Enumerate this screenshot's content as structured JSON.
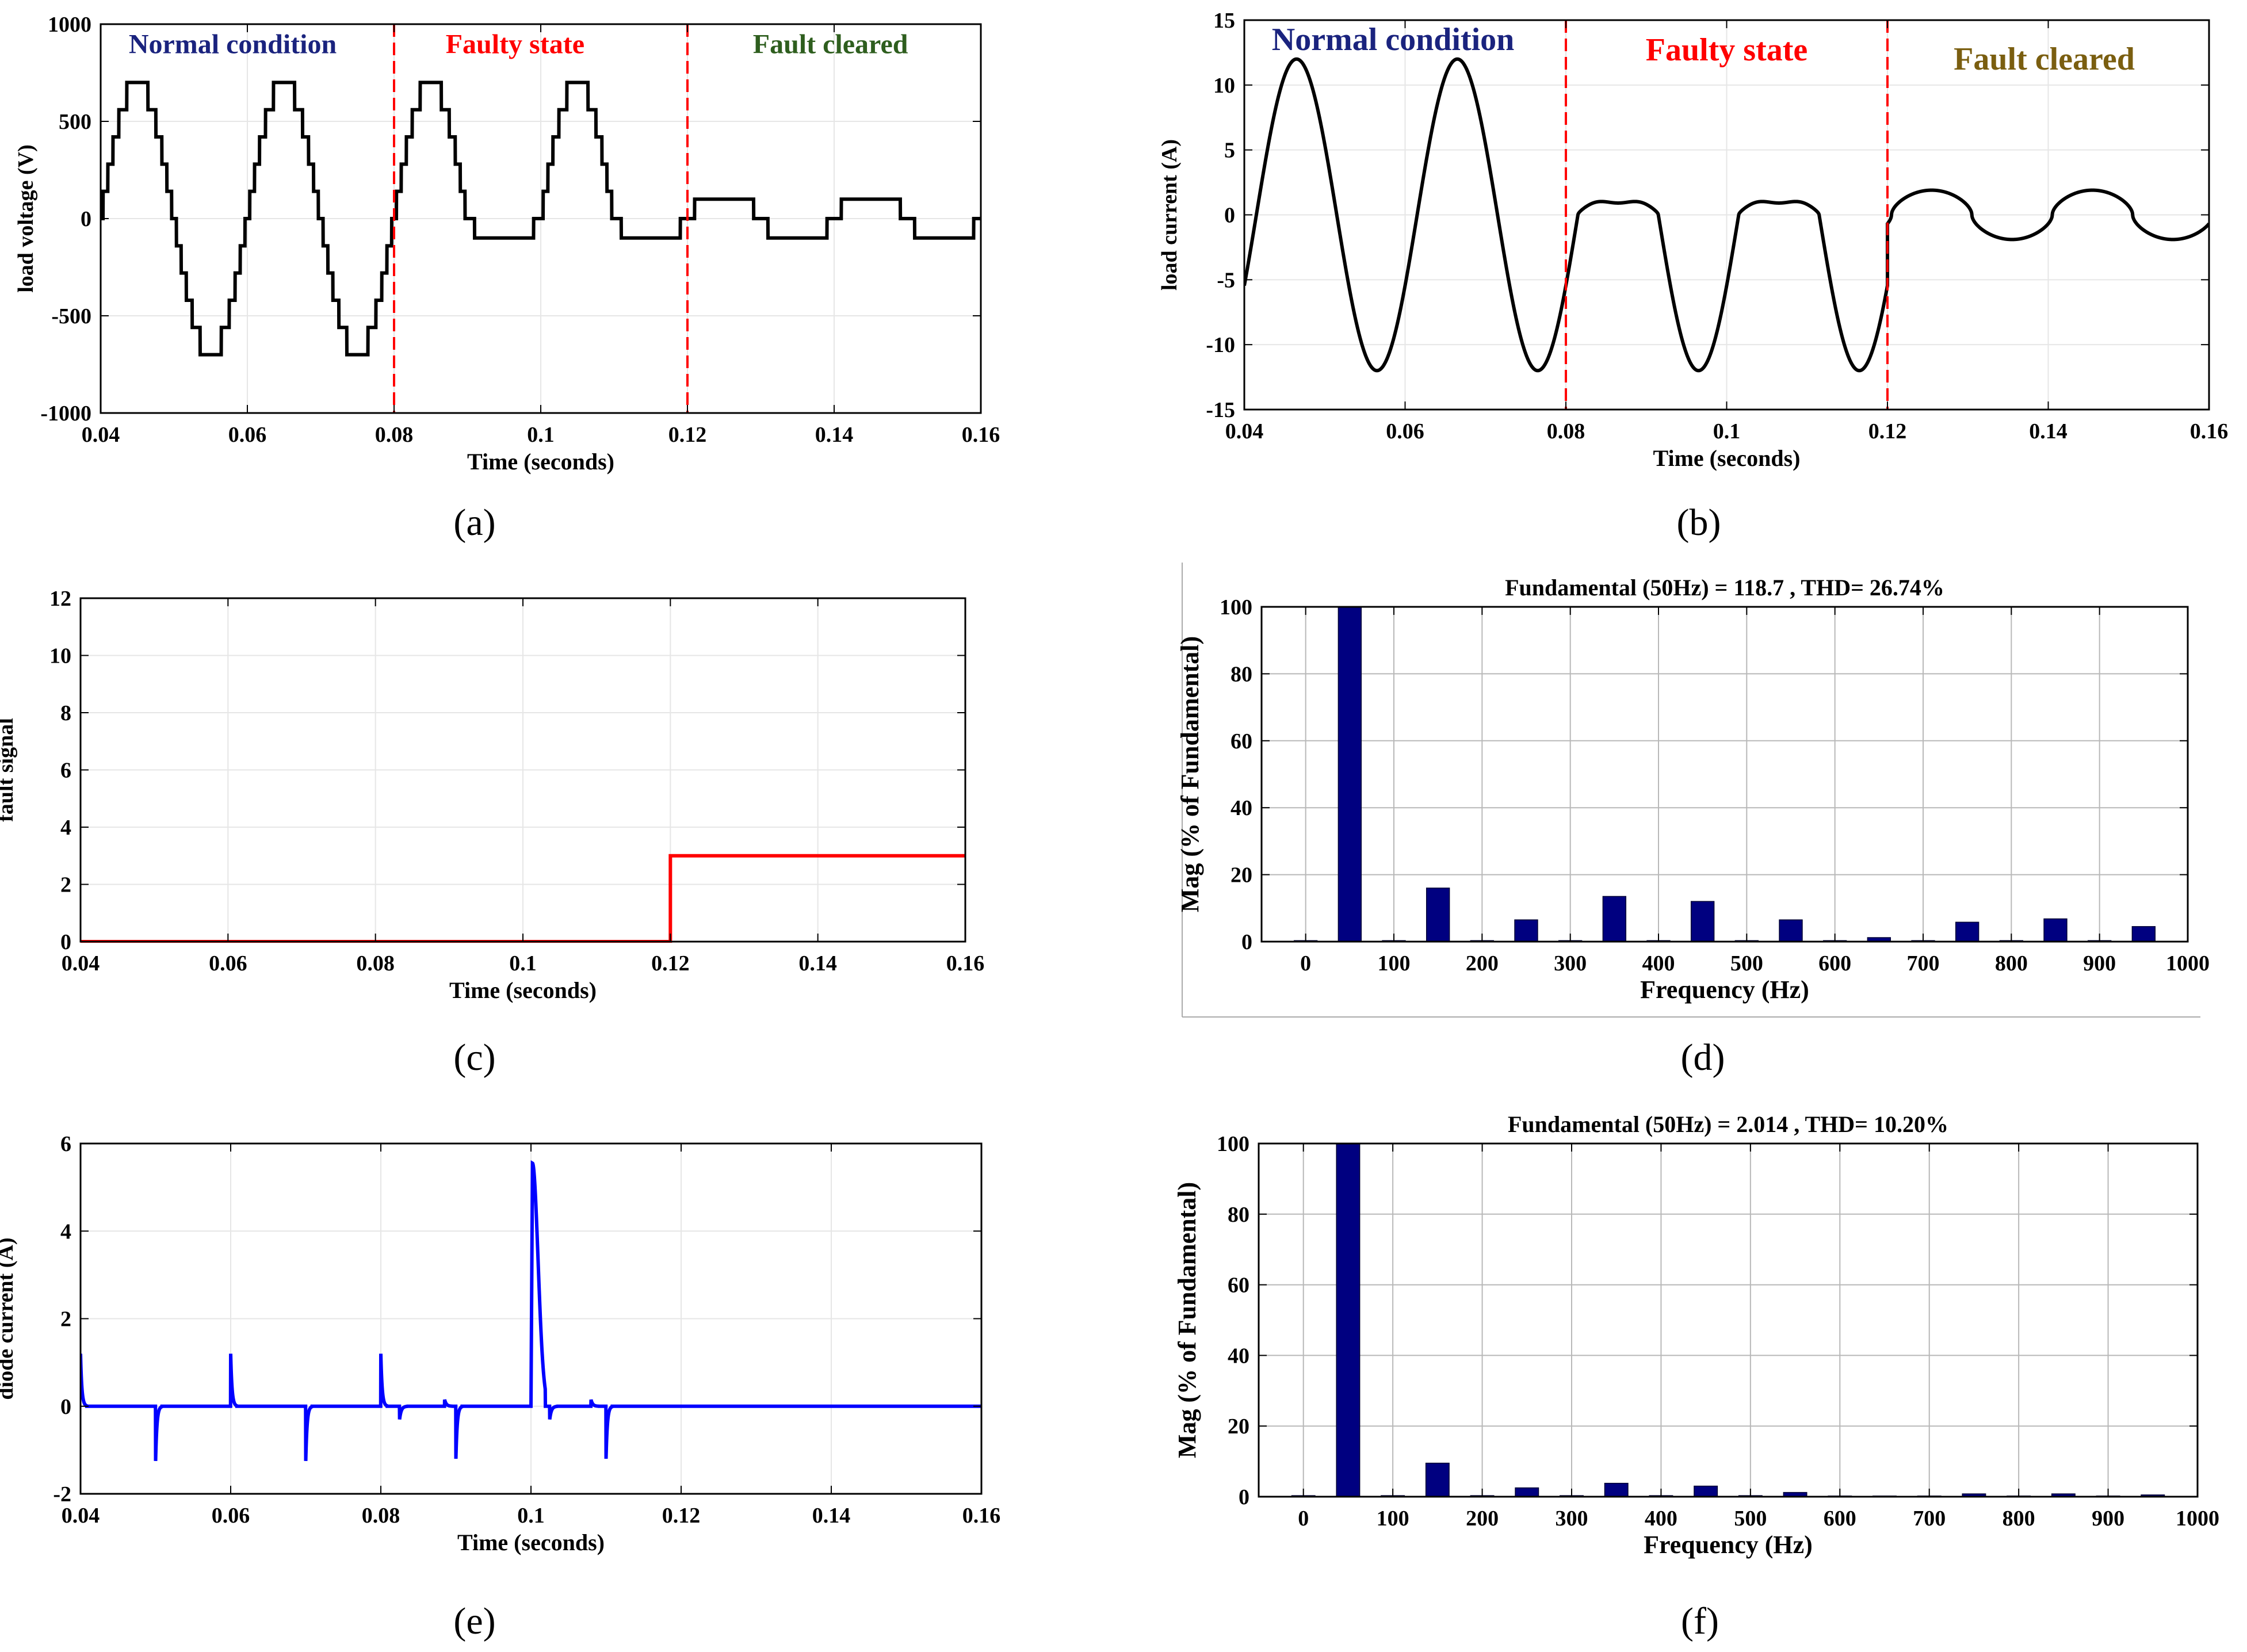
{
  "chart_data": [
    {
      "id": "a",
      "type": "line",
      "caption": "(a)",
      "xlabel": "Time (seconds)",
      "ylabel": "load voltage (V)",
      "xlim": [
        0.04,
        0.16
      ],
      "ylim": [
        -1000,
        1000
      ],
      "xticks": [
        0.04,
        0.06,
        0.08,
        0.1,
        0.12,
        0.14,
        0.16
      ],
      "xtick_labels": [
        "0.04",
        "0.06",
        "0.08",
        "0.1",
        "0.12",
        "0.14",
        "0.16"
      ],
      "yticks": [
        -1000,
        -500,
        0,
        500,
        1000
      ],
      "ytick_labels": [
        "-1000",
        "-500",
        "0",
        "500",
        "1000"
      ],
      "grid": true,
      "colors": {
        "line": "#000000",
        "fault_line": "#ff0000"
      },
      "vlines": [
        0.08,
        0.12
      ],
      "annotations": [
        {
          "text": "Normal condition",
          "x": 0.058,
          "y": 850,
          "color": "#1a237e"
        },
        {
          "text": "Faulty state",
          "x": 0.0965,
          "y": 850,
          "color": "#ff0000"
        },
        {
          "text": "Fault cleared",
          "x": 0.1395,
          "y": 850,
          "color": "#2e5e1e"
        }
      ],
      "series": [
        {
          "signal": "staircase_voltage",
          "segments": [
            {
              "x0": 0.04,
              "x1": 0.08,
              "kind": "full",
              "amp": 700
            },
            {
              "x0": 0.08,
              "x1": 0.12,
              "kind": "half",
              "amp": 700,
              "neg": -100
            },
            {
              "x0": 0.12,
              "x1": 0.16,
              "kind": "flat",
              "pos": 100,
              "neg": -100
            }
          ]
        }
      ]
    },
    {
      "id": "b",
      "type": "line",
      "caption": "(b)",
      "xlabel": "Time (seconds)",
      "ylabel": "load current (A)",
      "xlim": [
        0.04,
        0.16
      ],
      "ylim": [
        -15,
        15
      ],
      "xticks": [
        0.04,
        0.06,
        0.08,
        0.1,
        0.12,
        0.14,
        0.16
      ],
      "xtick_labels": [
        "0.04",
        "0.06",
        "0.08",
        "0.1",
        "0.12",
        "0.14",
        "0.16"
      ],
      "yticks": [
        -15,
        -10,
        -5,
        0,
        5,
        10,
        15
      ],
      "ytick_labels": [
        "-15",
        "-10",
        "-5",
        "0",
        "5",
        "10",
        "15"
      ],
      "grid": true,
      "colors": {
        "line": "#000000",
        "fault_line": "#ff0000"
      },
      "vlines": [
        0.08,
        0.12
      ],
      "annotations": [
        {
          "text": "Normal condition",
          "x": 0.0585,
          "y": 12.7,
          "color": "#1a237e"
        },
        {
          "text": "Faulty state",
          "x": 0.1,
          "y": 11.9,
          "color": "#ff0000"
        },
        {
          "text": "Fault cleared",
          "x": 0.1395,
          "y": 11.2,
          "color": "#7a5e10"
        }
      ],
      "series": [
        {
          "signal": "load_current",
          "segments": [
            {
              "x0": 0.04,
              "x1": 0.08,
              "kind": "sine",
              "amp": 12,
              "phase_time": 0.0415
            },
            {
              "x0": 0.08,
              "x1": 0.12,
              "kind": "half_neg",
              "amp": 12,
              "pos_amp": 1.3
            },
            {
              "x0": 0.12,
              "x1": 0.16,
              "kind": "small",
              "amp": 1.9
            }
          ]
        }
      ]
    },
    {
      "id": "c",
      "type": "line",
      "caption": "(c)",
      "xlabel": "Time (seconds)",
      "ylabel": "fault signal",
      "xlim": [
        0.04,
        0.16
      ],
      "ylim": [
        0,
        12
      ],
      "xticks": [
        0.04,
        0.06,
        0.08,
        0.1,
        0.12,
        0.14,
        0.16
      ],
      "xtick_labels": [
        "0.04",
        "0.06",
        "0.08",
        "0.1",
        "0.12",
        "0.14",
        "0.16"
      ],
      "yticks": [
        0,
        2,
        4,
        6,
        8,
        10,
        12
      ],
      "ytick_labels": [
        "0",
        "2",
        "4",
        "6",
        "8",
        "10",
        "12"
      ],
      "grid": true,
      "colors": {
        "line": "#ff0000"
      },
      "series": [
        {
          "signal": "fault_signal",
          "x": [
            0.04,
            0.12,
            0.12,
            0.16
          ],
          "y": [
            0,
            0,
            3,
            3
          ]
        }
      ]
    },
    {
      "id": "d",
      "type": "bar",
      "caption": "(d)",
      "title": "Fundamental (50Hz) = 118.7 , THD= 26.74%",
      "xlabel": "Frequency (Hz)",
      "ylabel": "Mag (% of Fundamental)",
      "xlim": [
        -50,
        1000
      ],
      "ylim": [
        0,
        100
      ],
      "xticks": [
        0,
        100,
        200,
        300,
        400,
        500,
        600,
        700,
        800,
        900,
        1000
      ],
      "xtick_labels": [
        "0",
        "100",
        "200",
        "300",
        "400",
        "500",
        "600",
        "700",
        "800",
        "900",
        "1000"
      ],
      "yticks": [
        0,
        20,
        40,
        60,
        80,
        100
      ],
      "ytick_labels": [
        "0",
        "20",
        "40",
        "60",
        "80",
        "100"
      ],
      "grid": true,
      "colors": {
        "bar": "#000080"
      },
      "x": [
        0,
        50,
        100,
        150,
        200,
        250,
        300,
        350,
        400,
        450,
        500,
        550,
        600,
        650,
        700,
        750,
        800,
        850,
        900,
        950
      ],
      "values": [
        0.3,
        100,
        0.3,
        16,
        0.3,
        6.5,
        0.3,
        13.5,
        0.3,
        12,
        0.3,
        6.5,
        0.3,
        1.2,
        0.3,
        5.8,
        0.3,
        6.8,
        0.3,
        4.5
      ]
    },
    {
      "id": "e",
      "type": "line",
      "caption": "(e)",
      "xlabel": "Time (seconds)",
      "ylabel": "diode current (A)",
      "xlim": [
        0.04,
        0.16
      ],
      "ylim": [
        -2,
        6
      ],
      "xticks": [
        0.04,
        0.06,
        0.08,
        0.1,
        0.12,
        0.14,
        0.16
      ],
      "xtick_labels": [
        "0.04",
        "0.06",
        "0.08",
        "0.1",
        "0.12",
        "0.14",
        "0.16"
      ],
      "yticks": [
        -2,
        0,
        2,
        4,
        6
      ],
      "ytick_labels": [
        "-2",
        "0",
        "2",
        "4",
        "6"
      ],
      "grid": true,
      "colors": {
        "line": "#0000ff"
      },
      "series": [
        {
          "signal": "diode_current",
          "spikes": [
            {
              "t": 0.04,
              "amp": 1.2,
              "w": 0.0008
            },
            {
              "t": 0.05,
              "amp": -1.25,
              "w": 0.0008
            },
            {
              "t": 0.06,
              "amp": 1.2,
              "w": 0.0008
            },
            {
              "t": 0.07,
              "amp": -1.25,
              "w": 0.0008
            },
            {
              "t": 0.08,
              "amp": 1.2,
              "w": 0.0008
            },
            {
              "t": 0.0825,
              "amp": -0.3,
              "w": 0.001
            },
            {
              "t": 0.0885,
              "amp": 0.15,
              "w": 0.001
            },
            {
              "t": 0.09,
              "amp": -1.2,
              "w": 0.0008
            },
            {
              "t": 0.1,
              "amp": 5.55,
              "w": 0.0019
            },
            {
              "t": 0.1025,
              "amp": -0.3,
              "w": 0.001
            },
            {
              "t": 0.108,
              "amp": 0.15,
              "w": 0.001
            },
            {
              "t": 0.11,
              "amp": -1.2,
              "w": 0.0008
            }
          ]
        }
      ]
    },
    {
      "id": "f",
      "type": "bar",
      "caption": "(f)",
      "title": "Fundamental (50Hz) = 2.014 , THD= 10.20%",
      "xlabel": "Frequency (Hz)",
      "ylabel": "Mag (% of Fundamental)",
      "xlim": [
        -50,
        1000
      ],
      "ylim": [
        0,
        100
      ],
      "xticks": [
        0,
        100,
        200,
        300,
        400,
        500,
        600,
        700,
        800,
        900,
        1000
      ],
      "xtick_labels": [
        "0",
        "100",
        "200",
        "300",
        "400",
        "500",
        "600",
        "700",
        "800",
        "900",
        "1000"
      ],
      "yticks": [
        0,
        20,
        40,
        60,
        80,
        100
      ],
      "ytick_labels": [
        "0",
        "20",
        "40",
        "60",
        "80",
        "100"
      ],
      "grid": true,
      "colors": {
        "bar": "#000080"
      },
      "x": [
        0,
        50,
        100,
        150,
        200,
        250,
        300,
        350,
        400,
        450,
        500,
        550,
        600,
        650,
        700,
        750,
        800,
        850,
        900,
        950
      ],
      "values": [
        0.3,
        100,
        0.3,
        9.5,
        0.3,
        2.5,
        0.3,
        3.8,
        0.3,
        3,
        0.3,
        1.2,
        0.2,
        0.2,
        0.2,
        0.8,
        0.2,
        0.8,
        0.2,
        0.5
      ]
    }
  ]
}
